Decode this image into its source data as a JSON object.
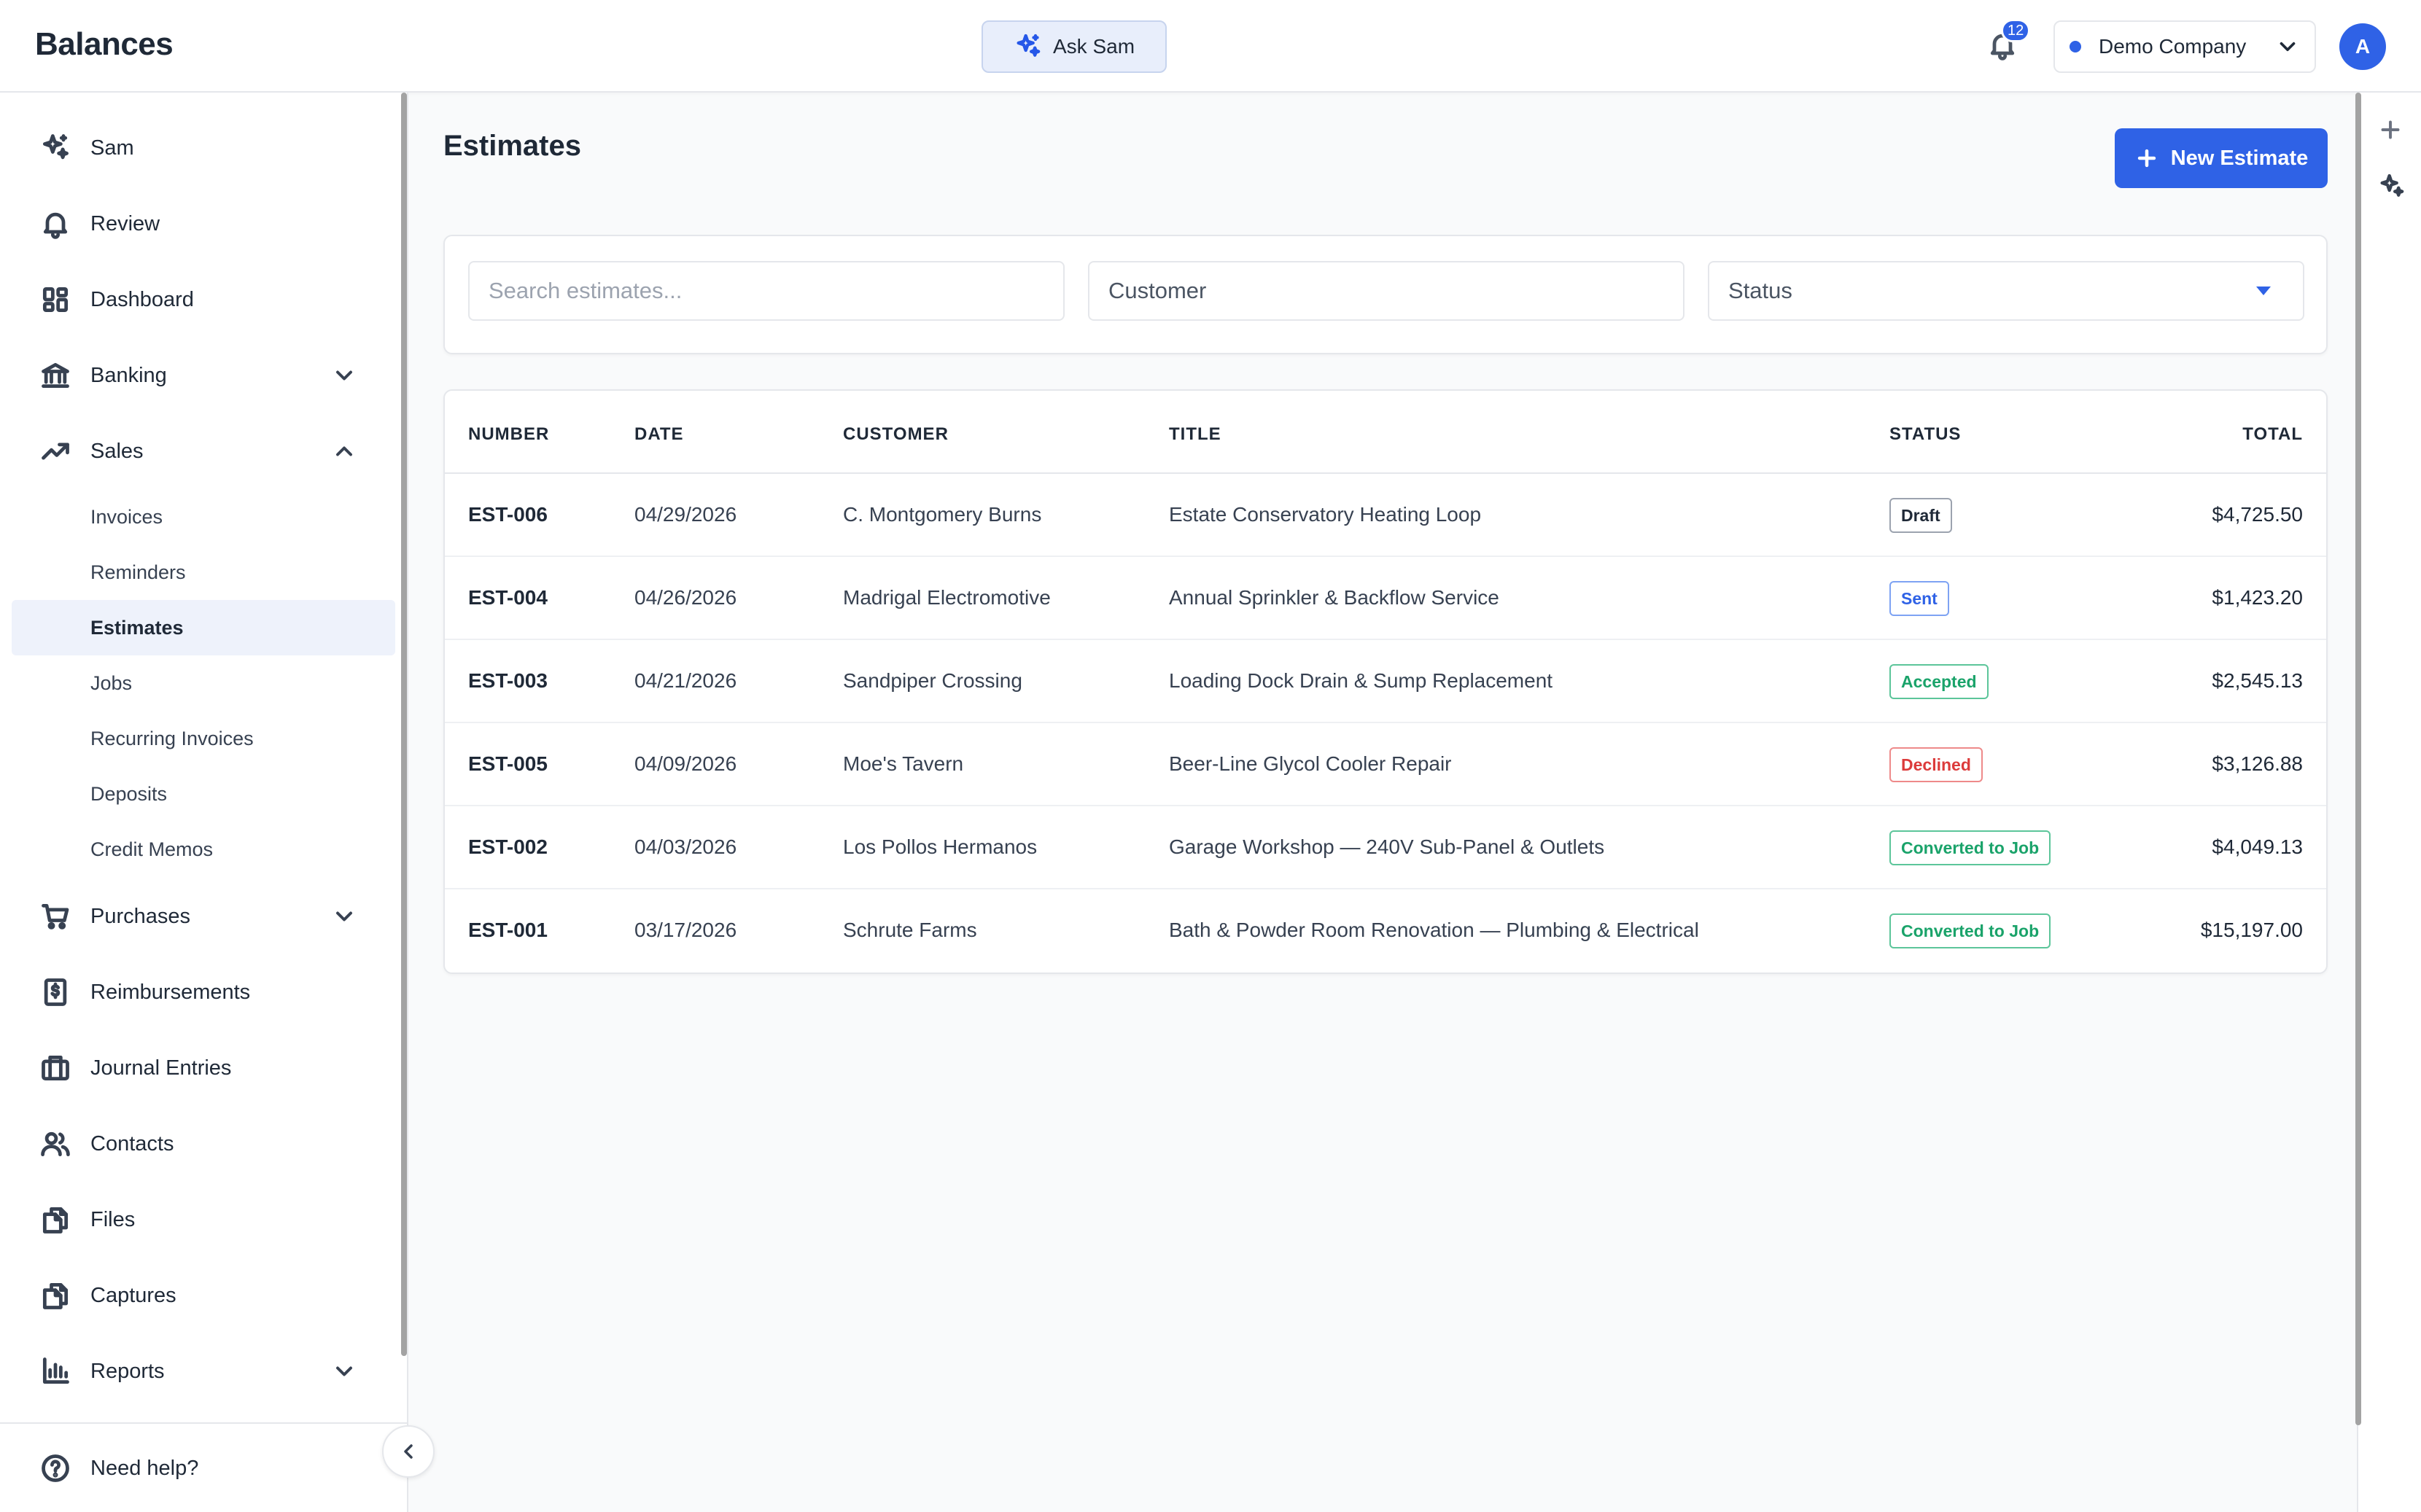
{
  "app": {
    "title": "Balances"
  },
  "header": {
    "ask_label": "Ask Sam",
    "notification_count": "12",
    "company": "Demo Company",
    "avatar_initial": "A"
  },
  "sidebar": {
    "items": [
      {
        "label": "Sam",
        "icon": "sparkles-icon"
      },
      {
        "label": "Review",
        "icon": "bell-icon"
      },
      {
        "label": "Dashboard",
        "icon": "dashboard-icon"
      },
      {
        "label": "Banking",
        "icon": "bank-icon",
        "expandable": true,
        "expanded": false
      },
      {
        "label": "Sales",
        "icon": "trending-up-icon",
        "expandable": true,
        "expanded": true
      },
      {
        "label": "Purchases",
        "icon": "cart-icon",
        "expandable": true,
        "expanded": false
      },
      {
        "label": "Reimbursements",
        "icon": "receipt-dollar-icon"
      },
      {
        "label": "Journal Entries",
        "icon": "journal-icon"
      },
      {
        "label": "Contacts",
        "icon": "users-icon"
      },
      {
        "label": "Files",
        "icon": "files-icon"
      },
      {
        "label": "Captures",
        "icon": "captures-icon"
      },
      {
        "label": "Reports",
        "icon": "bar-chart-icon",
        "expandable": true,
        "expanded": false
      }
    ],
    "sales_subitems": [
      {
        "label": "Invoices",
        "active": false
      },
      {
        "label": "Reminders",
        "active": false
      },
      {
        "label": "Estimates",
        "active": true
      },
      {
        "label": "Jobs",
        "active": false
      },
      {
        "label": "Recurring Invoices",
        "active": false
      },
      {
        "label": "Deposits",
        "active": false
      },
      {
        "label": "Credit Memos",
        "active": false
      }
    ],
    "help_label": "Need help?"
  },
  "main": {
    "title": "Estimates",
    "new_button": "New Estimate",
    "filters": {
      "search_placeholder": "Search estimates...",
      "customer_placeholder": "Customer",
      "status_label": "Status"
    },
    "table": {
      "columns": [
        "NUMBER",
        "DATE",
        "CUSTOMER",
        "TITLE",
        "STATUS",
        "TOTAL"
      ],
      "rows": [
        {
          "number": "EST-006",
          "date": "04/29/2026",
          "customer": "C. Montgomery Burns",
          "title": "Estate Conservatory Heating Loop",
          "status": "Draft",
          "total": "$4,725.50"
        },
        {
          "number": "EST-004",
          "date": "04/26/2026",
          "customer": "Madrigal Electromotive",
          "title": "Annual Sprinkler & Backflow Service",
          "status": "Sent",
          "total": "$1,423.20"
        },
        {
          "number": "EST-003",
          "date": "04/21/2026",
          "customer": "Sandpiper Crossing",
          "title": "Loading Dock Drain & Sump Replacement",
          "status": "Accepted",
          "total": "$2,545.13"
        },
        {
          "number": "EST-005",
          "date": "04/09/2026",
          "customer": "Moe's Tavern",
          "title": "Beer-Line Glycol Cooler Repair",
          "status": "Declined",
          "total": "$3,126.88"
        },
        {
          "number": "EST-002",
          "date": "04/03/2026",
          "customer": "Los Pollos Hermanos",
          "title": "Garage Workshop — 240V Sub-Panel & Outlets",
          "status": "Converted to Job",
          "total": "$4,049.13"
        },
        {
          "number": "EST-001",
          "date": "03/17/2026",
          "customer": "Schrute Farms",
          "title": "Bath & Powder Room Renovation — Plumbing & Electrical",
          "status": "Converted to Job",
          "total": "$15,197.00"
        }
      ]
    }
  },
  "colors": {
    "accent": "#2f62e6",
    "status": {
      "Draft": {
        "text": "#1f2937",
        "border": "#9ca3af"
      },
      "Sent": {
        "text": "#2f62e6",
        "border": "#7ea3f3"
      },
      "Accepted": {
        "text": "#1aa36a",
        "border": "#5cc59a"
      },
      "Declined": {
        "text": "#dc3b3b",
        "border": "#ee8a8a"
      },
      "Converted to Job": {
        "text": "#1aa36a",
        "border": "#5cc59a"
      }
    }
  }
}
